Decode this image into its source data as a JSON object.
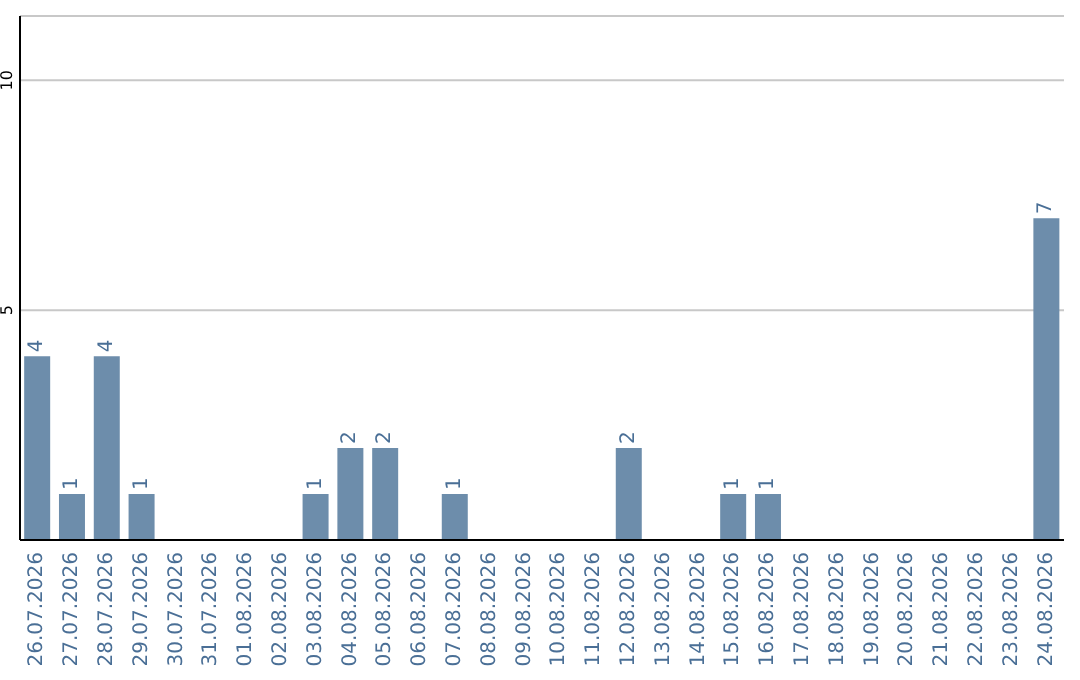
{
  "chart_data": {
    "type": "bar",
    "categories": [
      "26.07.2026",
      "27.07.2026",
      "28.07.2026",
      "29.07.2026",
      "30.07.2026",
      "31.07.2026",
      "01.08.2026",
      "02.08.2026",
      "03.08.2026",
      "04.08.2026",
      "05.08.2026",
      "06.08.2026",
      "07.08.2026",
      "08.08.2026",
      "09.08.2026",
      "10.08.2026",
      "11.08.2026",
      "12.08.2026",
      "13.08.2026",
      "14.08.2026",
      "15.08.2026",
      "16.08.2026",
      "17.08.2026",
      "18.08.2026",
      "19.08.2026",
      "20.08.2026",
      "21.08.2026",
      "22.08.2026",
      "23.08.2026",
      "24.08.2026"
    ],
    "values": [
      4,
      1,
      4,
      1,
      0,
      0,
      0,
      0,
      1,
      2,
      2,
      0,
      1,
      0,
      0,
      0,
      0,
      2,
      0,
      0,
      1,
      1,
      0,
      0,
      0,
      0,
      0,
      0,
      0,
      7
    ],
    "value_labels": [
      "4",
      "1",
      "4",
      "1",
      null,
      null,
      null,
      null,
      "1",
      "2",
      "2",
      null,
      "1",
      null,
      null,
      null,
      null,
      "2",
      null,
      null,
      "1",
      "1",
      null,
      null,
      null,
      null,
      null,
      null,
      null,
      "7"
    ],
    "color": "#6d8dab",
    "ylim": [
      0,
      11.4
    ],
    "yticks": [
      5,
      10
    ],
    "grid": "y"
  }
}
